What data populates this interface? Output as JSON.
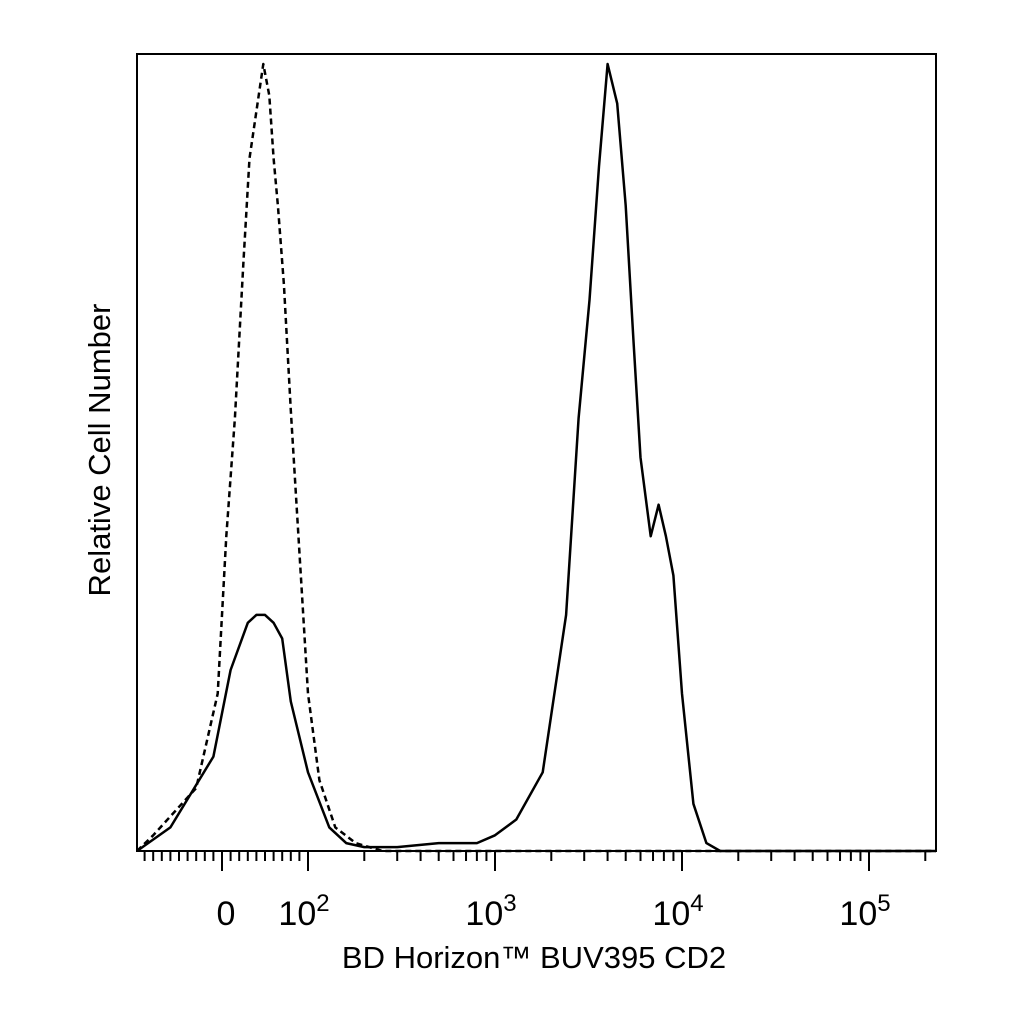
{
  "chart_data": {
    "type": "line",
    "title": "",
    "xlabel": "BD Horizon™ BUV395 CD2",
    "ylabel": "Relative Cell Number",
    "x_scale": "biexponential (linear near 0, logarithmic above)",
    "xlim": [
      -200,
      250000
    ],
    "ylim": [
      0,
      100
    ],
    "x_ticks": [
      {
        "value": 0,
        "base": "0",
        "exp": ""
      },
      {
        "value": 100,
        "base": "10",
        "exp": "2"
      },
      {
        "value": 1000,
        "base": "10",
        "exp": "3"
      },
      {
        "value": 10000,
        "base": "10",
        "exp": "4"
      },
      {
        "value": 100000,
        "base": "10",
        "exp": "5"
      }
    ],
    "grid": false,
    "legend": "none",
    "series": [
      {
        "style": "dashed",
        "x": [
          -150,
          -80,
          -30,
          -5,
          5,
          15,
          25,
          32,
          40,
          48,
          55,
          60,
          65,
          72,
          80,
          90,
          100,
          115,
          140,
          180,
          250,
          400,
          700,
          1000,
          2000,
          5000,
          10000,
          20000,
          50000,
          100000,
          250000
        ],
        "y": [
          0,
          2,
          8,
          20,
          40,
          55,
          75,
          88,
          94,
          100,
          96,
          88,
          82,
          72,
          56,
          38,
          20,
          9,
          3,
          1,
          0,
          0,
          0,
          0,
          0,
          0,
          0,
          0,
          0,
          0,
          0
        ]
      },
      {
        "style": "solid",
        "x": [
          -150,
          -60,
          -10,
          10,
          30,
          40,
          50,
          60,
          70,
          80,
          100,
          130,
          160,
          200,
          300,
          500,
          800,
          1000,
          1300,
          1800,
          2400,
          2800,
          3200,
          3600,
          4000,
          4500,
          5000,
          5500,
          6000,
          6800,
          7500,
          8200,
          9000,
          10000,
          11500,
          13500,
          16000,
          20000,
          30000,
          100000,
          250000
        ],
        "y": [
          0,
          3,
          12,
          23,
          29,
          30,
          30,
          29,
          27,
          19,
          10,
          3,
          1,
          0.5,
          0.5,
          1,
          1,
          2,
          4,
          10,
          30,
          55,
          70,
          87,
          100,
          95,
          82,
          65,
          50,
          40,
          44,
          40,
          35,
          20,
          6,
          1,
          0,
          0,
          0,
          0,
          0
        ]
      }
    ]
  }
}
